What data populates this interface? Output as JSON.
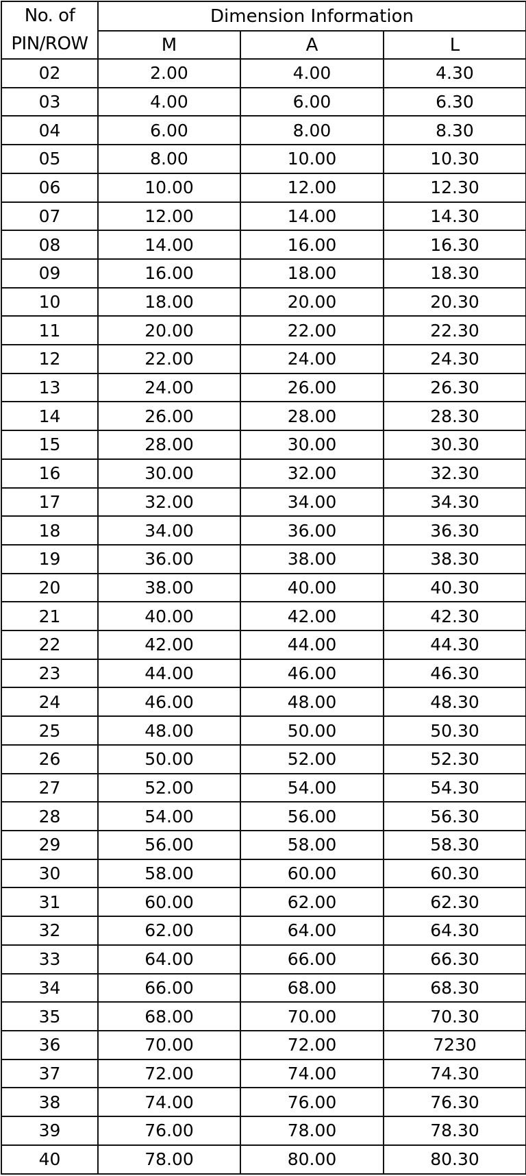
{
  "header": {
    "pin_label_line1": "No. of",
    "pin_label_line2": "PIN/ROW",
    "group_label": "Dimension Information",
    "columns": [
      "M",
      "A",
      "L"
    ]
  },
  "rows": [
    [
      "02",
      "2.00",
      "4.00",
      "4.30"
    ],
    [
      "03",
      "4.00",
      "6.00",
      "6.30"
    ],
    [
      "04",
      "6.00",
      "8.00",
      "8.30"
    ],
    [
      "05",
      "8.00",
      "10.00",
      "10.30"
    ],
    [
      "06",
      "10.00",
      "12.00",
      "12.30"
    ],
    [
      "07",
      "12.00",
      "14.00",
      "14.30"
    ],
    [
      "08",
      "14.00",
      "16.00",
      "16.30"
    ],
    [
      "09",
      "16.00",
      "18.00",
      "18.30"
    ],
    [
      "10",
      "18.00",
      "20.00",
      "20.30"
    ],
    [
      "11",
      "20.00",
      "22.00",
      "22.30"
    ],
    [
      "12",
      "22.00",
      "24.00",
      "24.30"
    ],
    [
      "13",
      "24.00",
      "26.00",
      "26.30"
    ],
    [
      "14",
      "26.00",
      "28.00",
      "28.30"
    ],
    [
      "15",
      "28.00",
      "30.00",
      "30.30"
    ],
    [
      "16",
      "30.00",
      "32.00",
      "32.30"
    ],
    [
      "17",
      "32.00",
      "34.00",
      "34.30"
    ],
    [
      "18",
      "34.00",
      "36.00",
      "36.30"
    ],
    [
      "19",
      "36.00",
      "38.00",
      "38.30"
    ],
    [
      "20",
      "38.00",
      "40.00",
      "40.30"
    ],
    [
      "21",
      "40.00",
      "42.00",
      "42.30"
    ],
    [
      "22",
      "42.00",
      "44.00",
      "44.30"
    ],
    [
      "23",
      "44.00",
      "46.00",
      "46.30"
    ],
    [
      "24",
      "46.00",
      "48.00",
      "48.30"
    ],
    [
      "25",
      "48.00",
      "50.00",
      "50.30"
    ],
    [
      "26",
      "50.00",
      "52.00",
      "52.30"
    ],
    [
      "27",
      "52.00",
      "54.00",
      "54.30"
    ],
    [
      "28",
      "54.00",
      "56.00",
      "56.30"
    ],
    [
      "29",
      "56.00",
      "58.00",
      "58.30"
    ],
    [
      "30",
      "58.00",
      "60.00",
      "60.30"
    ],
    [
      "31",
      "60.00",
      "62.00",
      "62.30"
    ],
    [
      "32",
      "62.00",
      "64.00",
      "64.30"
    ],
    [
      "33",
      "64.00",
      "66.00",
      "66.30"
    ],
    [
      "34",
      "66.00",
      "68.00",
      "68.30"
    ],
    [
      "35",
      "68.00",
      "70.00",
      "70.30"
    ],
    [
      "36",
      "70.00",
      "72.00",
      "7230"
    ],
    [
      "37",
      "72.00",
      "74.00",
      "74.30"
    ],
    [
      "38",
      "74.00",
      "76.00",
      "76.30"
    ],
    [
      "39",
      "76.00",
      "78.00",
      "78.30"
    ],
    [
      "40",
      "78.00",
      "80.00",
      "80.30"
    ]
  ]
}
